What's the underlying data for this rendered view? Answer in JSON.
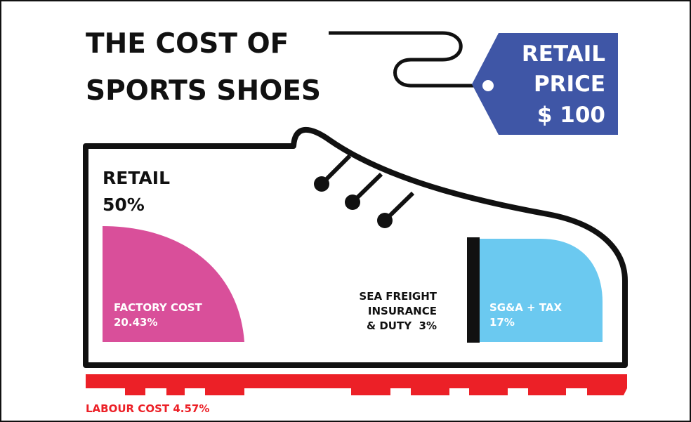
{
  "title": {
    "lines": [
      "THE COST OF",
      "SPORTS SHOES"
    ]
  },
  "price_tag": {
    "lines": [
      "RETAIL",
      "PRICE",
      "$ 100"
    ]
  },
  "retail": {
    "label": "RETAIL",
    "share": "50%"
  },
  "factory_cost": {
    "label": "FACTORY COST",
    "share": "20.43%"
  },
  "sea_freight": {
    "lines": [
      "SEA FREIGHT",
      "INSURANCE",
      "& DUTY  3%"
    ]
  },
  "sga_tax": {
    "label": "SG&A + TAX",
    "share": "17%"
  },
  "labour_cost": {
    "label": "LABOUR COST 4.57%"
  }
}
